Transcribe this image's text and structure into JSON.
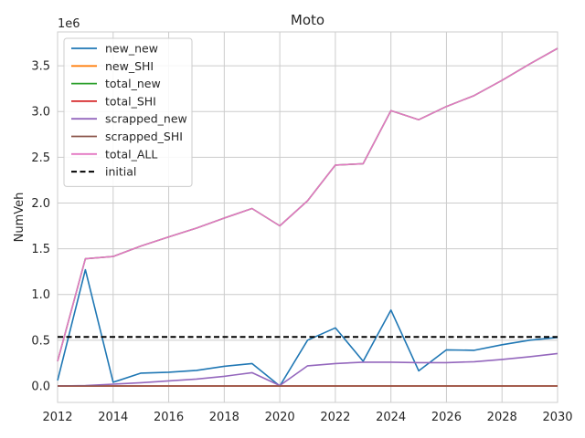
{
  "chart_data": {
    "type": "line",
    "title": "Moto",
    "xlabel": "",
    "ylabel": "NumVeh",
    "y_offset_label": "1e6",
    "y_scale": 1000000,
    "xlim": [
      2012,
      2030
    ],
    "ylim": [
      -180000,
      3870000
    ],
    "x_ticks": [
      2012,
      2014,
      2016,
      2018,
      2020,
      2022,
      2024,
      2026,
      2028,
      2030
    ],
    "y_ticks": [
      0,
      500000,
      1000000,
      1500000,
      2000000,
      2500000,
      3000000,
      3500000
    ],
    "y_tick_labels": [
      "0.0",
      "0.5",
      "1.0",
      "1.5",
      "2.0",
      "2.5",
      "3.0",
      "3.5"
    ],
    "grid": true,
    "legend_position": "top-left",
    "x": [
      2012,
      2013,
      2014,
      2015,
      2016,
      2017,
      2018,
      2019,
      2020,
      2021,
      2022,
      2023,
      2024,
      2025,
      2026,
      2027,
      2028,
      2029,
      2030
    ],
    "series": [
      {
        "name": "new_new",
        "color": "#1f77b4",
        "dash": "solid",
        "values": [
          60000,
          1270000,
          40000,
          140000,
          150000,
          170000,
          215000,
          245000,
          0,
          500000,
          635000,
          270000,
          830000,
          165000,
          395000,
          390000,
          450000,
          500000,
          530000
        ]
      },
      {
        "name": "new_SHI",
        "color": "#ff7f0e",
        "dash": "solid",
        "values": [
          0,
          0,
          0,
          0,
          0,
          0,
          0,
          0,
          0,
          0,
          0,
          0,
          0,
          0,
          0,
          0,
          0,
          0,
          0
        ]
      },
      {
        "name": "total_new",
        "color": "#2ca02c",
        "dash": "solid",
        "values": [
          270000,
          1390000,
          1415000,
          1530000,
          1630000,
          1725000,
          1835000,
          1940000,
          1750000,
          2025000,
          2415000,
          2430000,
          3010000,
          2910000,
          3055000,
          3175000,
          3340000,
          3520000,
          3690000
        ]
      },
      {
        "name": "total_SHI",
        "color": "#d62728",
        "dash": "solid",
        "values": [
          0,
          0,
          0,
          0,
          0,
          0,
          0,
          0,
          0,
          0,
          0,
          0,
          0,
          0,
          0,
          0,
          0,
          0,
          0
        ]
      },
      {
        "name": "scrapped_new",
        "color": "#9467bd",
        "dash": "solid",
        "values": [
          0,
          5000,
          20000,
          35000,
          55000,
          75000,
          105000,
          145000,
          5000,
          220000,
          245000,
          260000,
          260000,
          255000,
          255000,
          265000,
          290000,
          320000,
          355000
        ]
      },
      {
        "name": "scrapped_SHI",
        "color": "#8c564b",
        "dash": "solid",
        "values": [
          0,
          0,
          0,
          0,
          0,
          0,
          0,
          0,
          0,
          0,
          0,
          0,
          0,
          0,
          0,
          0,
          0,
          0,
          0
        ]
      },
      {
        "name": "total_ALL",
        "color": "#e377c2",
        "dash": "solid",
        "values": [
          270000,
          1390000,
          1415000,
          1530000,
          1630000,
          1725000,
          1835000,
          1940000,
          1750000,
          2025000,
          2415000,
          2430000,
          3010000,
          2910000,
          3055000,
          3175000,
          3340000,
          3520000,
          3690000
        ]
      },
      {
        "name": "initial",
        "color": "#000000",
        "dash": "dashed",
        "values": [
          535000,
          535000,
          535000,
          535000,
          535000,
          535000,
          535000,
          535000,
          535000,
          535000,
          535000,
          535000,
          535000,
          535000,
          535000,
          535000,
          535000,
          535000,
          535000
        ]
      }
    ]
  }
}
